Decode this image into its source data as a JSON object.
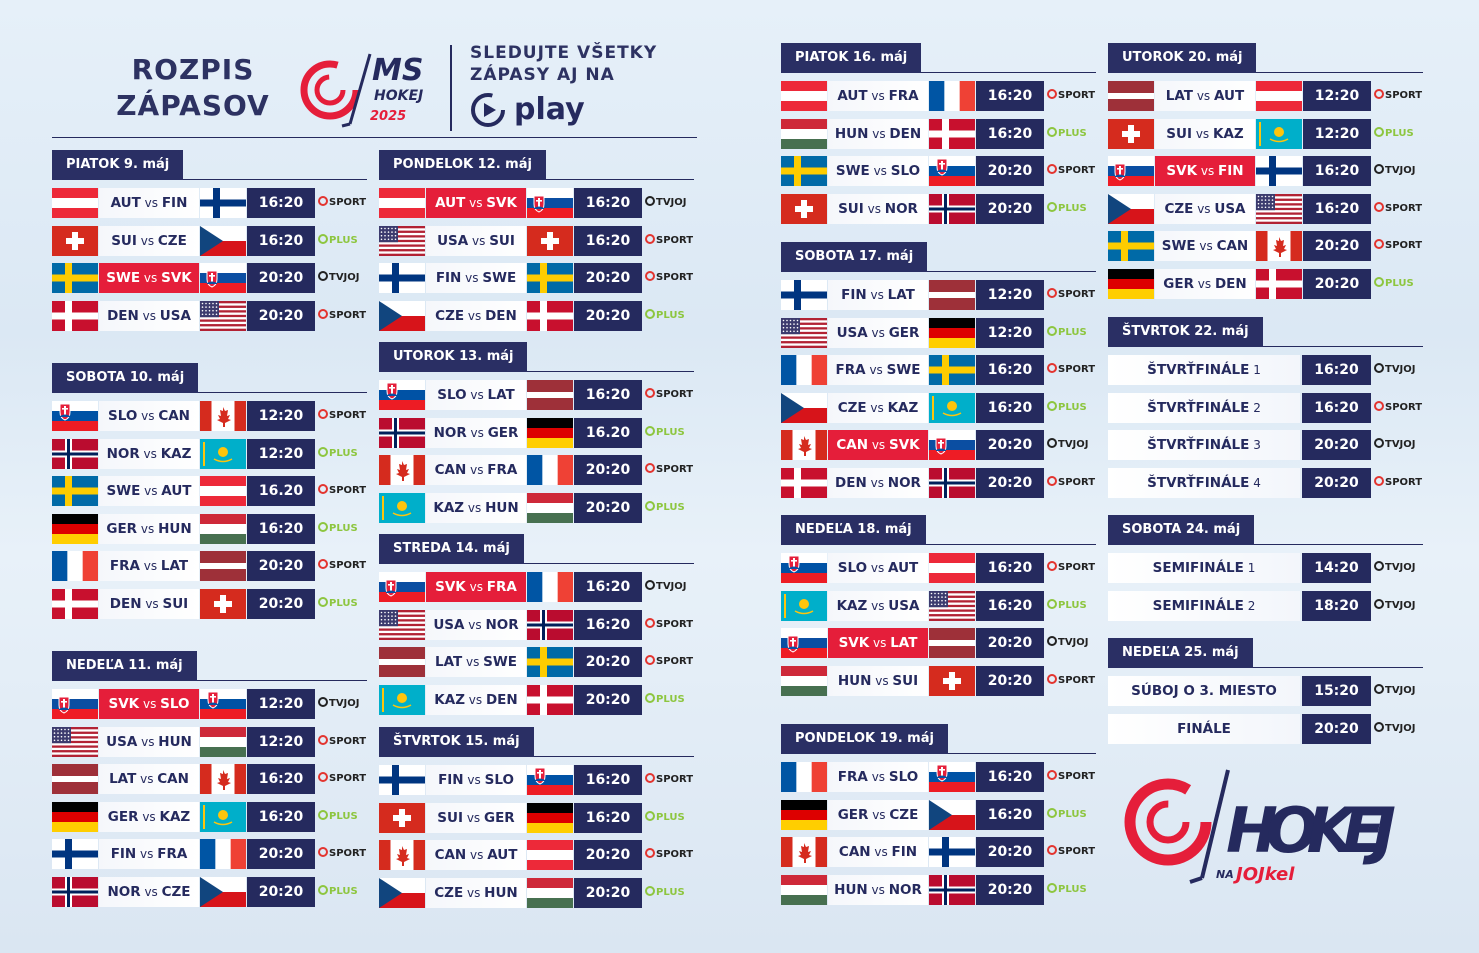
{
  "header": {
    "title_line1": "ROZPIS",
    "title_line2": "ZÁPASOV",
    "logo_ms": "MS",
    "logo_hokej": "HOKEJ",
    "logo_year": "2025",
    "follow_line1": "SLEDUJTE VŠETKY",
    "follow_line2": "ZÁPASY AJ NA",
    "play_label": "play"
  },
  "vs_label": "vs",
  "channels": {
    "sport": "SPORT",
    "plus": "PLUS",
    "tvjoj": "TVJOJ"
  },
  "brand": {
    "hokej": "HOKEJ",
    "na": "NA",
    "jojkel": "JOJkel"
  },
  "flag_colors": {
    "red": "#e51e3a",
    "navy": "#252a5e",
    "plus_green": "#8dc63f"
  },
  "days": [
    {
      "label": "PIATOK 9. máj",
      "matches": [
        {
          "home": "AUT",
          "away": "FIN",
          "time": "16:20",
          "channel": "sport",
          "svk": false
        },
        {
          "home": "SUI",
          "away": "CZE",
          "time": "16:20",
          "channel": "plus",
          "svk": false
        },
        {
          "home": "SWE",
          "away": "SVK",
          "time": "20:20",
          "channel": "tvjoj",
          "svk": true
        },
        {
          "home": "DEN",
          "away": "USA",
          "time": "20:20",
          "channel": "sport",
          "svk": false
        }
      ]
    },
    {
      "label": "SOBOTA 10. máj",
      "matches": [
        {
          "home": "SLO",
          "away": "CAN",
          "time": "12:20",
          "channel": "sport",
          "svk": false
        },
        {
          "home": "NOR",
          "away": "KAZ",
          "time": "12:20",
          "channel": "plus",
          "svk": false
        },
        {
          "home": "SWE",
          "away": "AUT",
          "time": "16.20",
          "channel": "sport",
          "svk": false
        },
        {
          "home": "GER",
          "away": "HUN",
          "time": "16:20",
          "channel": "plus",
          "svk": false
        },
        {
          "home": "FRA",
          "away": "LAT",
          "time": "20:20",
          "channel": "sport",
          "svk": false
        },
        {
          "home": "DEN",
          "away": "SUI",
          "time": "20:20",
          "channel": "plus",
          "svk": false
        }
      ]
    },
    {
      "label": "NEDEĽA 11. máj",
      "matches": [
        {
          "home": "SVK",
          "away": "SLO",
          "time": "12:20",
          "channel": "tvjoj",
          "svk": true
        },
        {
          "home": "USA",
          "away": "HUN",
          "time": "12:20",
          "channel": "sport",
          "svk": false
        },
        {
          "home": "LAT",
          "away": "CAN",
          "time": "16:20",
          "channel": "sport",
          "svk": false
        },
        {
          "home": "GER",
          "away": "KAZ",
          "time": "16:20",
          "channel": "plus",
          "svk": false
        },
        {
          "home": "FIN",
          "away": "FRA",
          "time": "20:20",
          "channel": "sport",
          "svk": false
        },
        {
          "home": "NOR",
          "away": "CZE",
          "time": "20:20",
          "channel": "plus",
          "svk": false
        }
      ]
    },
    {
      "label": "PONDELOK 12. máj",
      "matches": [
        {
          "home": "AUT",
          "away": "SVK",
          "time": "16:20",
          "channel": "tvjoj",
          "svk": true
        },
        {
          "home": "USA",
          "away": "SUI",
          "time": "16:20",
          "channel": "sport",
          "svk": false
        },
        {
          "home": "FIN",
          "away": "SWE",
          "time": "20:20",
          "channel": "sport",
          "svk": false
        },
        {
          "home": "CZE",
          "away": "DEN",
          "time": "20:20",
          "channel": "plus",
          "svk": false
        }
      ]
    },
    {
      "label": "UTOROK 13. máj",
      "matches": [
        {
          "home": "SLO",
          "away": "LAT",
          "time": "16:20",
          "channel": "sport",
          "svk": false
        },
        {
          "home": "NOR",
          "away": "GER",
          "time": "16.20",
          "channel": "plus",
          "svk": false
        },
        {
          "home": "CAN",
          "away": "FRA",
          "time": "20:20",
          "channel": "sport",
          "svk": false
        },
        {
          "home": "KAZ",
          "away": "HUN",
          "time": "20:20",
          "channel": "plus",
          "svk": false
        }
      ]
    },
    {
      "label": "STREDA 14. máj",
      "matches": [
        {
          "home": "SVK",
          "away": "FRA",
          "time": "16:20",
          "channel": "tvjoj",
          "svk": true
        },
        {
          "home": "USA",
          "away": "NOR",
          "time": "16:20",
          "channel": "sport",
          "svk": false
        },
        {
          "home": "LAT",
          "away": "SWE",
          "time": "20:20",
          "channel": "sport",
          "svk": false
        },
        {
          "home": "KAZ",
          "away": "DEN",
          "time": "20:20",
          "channel": "plus",
          "svk": false
        }
      ]
    },
    {
      "label": "ŠTVRTOK 15. máj",
      "matches": [
        {
          "home": "FIN",
          "away": "SLO",
          "time": "16:20",
          "channel": "sport",
          "svk": false
        },
        {
          "home": "SUI",
          "away": "GER",
          "time": "16:20",
          "channel": "plus",
          "svk": false
        },
        {
          "home": "CAN",
          "away": "AUT",
          "time": "20:20",
          "channel": "sport",
          "svk": false
        },
        {
          "home": "CZE",
          "away": "HUN",
          "time": "20:20",
          "channel": "plus",
          "svk": false
        }
      ]
    },
    {
      "label": "PIATOK 16. máj",
      "matches": [
        {
          "home": "AUT",
          "away": "FRA",
          "time": "16:20",
          "channel": "sport",
          "svk": false
        },
        {
          "home": "HUN",
          "away": "DEN",
          "time": "16:20",
          "channel": "plus",
          "svk": false
        },
        {
          "home": "SWE",
          "away": "SLO",
          "time": "20:20",
          "channel": "sport",
          "svk": false
        },
        {
          "home": "SUI",
          "away": "NOR",
          "time": "20:20",
          "channel": "plus",
          "svk": false
        }
      ]
    },
    {
      "label": "SOBOTA 17. máj",
      "matches": [
        {
          "home": "FIN",
          "away": "LAT",
          "time": "12:20",
          "channel": "sport",
          "svk": false
        },
        {
          "home": "USA",
          "away": "GER",
          "time": "12:20",
          "channel": "plus",
          "svk": false
        },
        {
          "home": "FRA",
          "away": "SWE",
          "time": "16:20",
          "channel": "sport",
          "svk": false
        },
        {
          "home": "CZE",
          "away": "KAZ",
          "time": "16:20",
          "channel": "plus",
          "svk": false
        },
        {
          "home": "CAN",
          "away": "SVK",
          "time": "20:20",
          "channel": "tvjoj",
          "svk": true
        },
        {
          "home": "DEN",
          "away": "NOR",
          "time": "20:20",
          "channel": "sport",
          "svk": false
        }
      ]
    },
    {
      "label": "NEDEĽA 18. máj",
      "matches": [
        {
          "home": "SLO",
          "away": "AUT",
          "time": "16:20",
          "channel": "sport",
          "svk": false
        },
        {
          "home": "KAZ",
          "away": "USA",
          "time": "16:20",
          "channel": "plus",
          "svk": false
        },
        {
          "home": "SVK",
          "away": "LAT",
          "time": "20:20",
          "channel": "tvjoj",
          "svk": true
        },
        {
          "home": "HUN",
          "away": "SUI",
          "time": "20:20",
          "channel": "sport",
          "svk": false
        }
      ]
    },
    {
      "label": "PONDELOK 19. máj",
      "matches": [
        {
          "home": "FRA",
          "away": "SLO",
          "time": "16:20",
          "channel": "sport",
          "svk": false
        },
        {
          "home": "GER",
          "away": "CZE",
          "time": "16:20",
          "channel": "plus",
          "svk": false
        },
        {
          "home": "CAN",
          "away": "FIN",
          "time": "20:20",
          "channel": "sport",
          "svk": false
        },
        {
          "home": "HUN",
          "away": "NOR",
          "time": "20:20",
          "channel": "plus",
          "svk": false
        }
      ]
    },
    {
      "label": "UTOROK 20. máj",
      "matches": [
        {
          "home": "LAT",
          "away": "AUT",
          "time": "12:20",
          "channel": "sport",
          "svk": false
        },
        {
          "home": "SUI",
          "away": "KAZ",
          "time": "12:20",
          "channel": "plus",
          "svk": false
        },
        {
          "home": "SVK",
          "away": "FIN",
          "time": "16:20",
          "channel": "tvjoj",
          "svk": true
        },
        {
          "home": "CZE",
          "away": "USA",
          "time": "16:20",
          "channel": "sport",
          "svk": false
        },
        {
          "home": "SWE",
          "away": "CAN",
          "time": "20:20",
          "channel": "sport",
          "svk": false
        },
        {
          "home": "GER",
          "away": "DEN",
          "time": "20:20",
          "channel": "plus",
          "svk": false
        }
      ]
    },
    {
      "label": "ŠTVRTOK 22. máj",
      "ko": [
        {
          "name": "ŠTVRŤFINÁLE",
          "num": "1",
          "time": "16:20",
          "channel": "tvjoj"
        },
        {
          "name": "ŠTVRŤFINÁLE",
          "num": "2",
          "time": "16:20",
          "channel": "sport"
        },
        {
          "name": "ŠTVRŤFINÁLE",
          "num": "3",
          "time": "20:20",
          "channel": "tvjoj"
        },
        {
          "name": "ŠTVRŤFINÁLE",
          "num": "4",
          "time": "20:20",
          "channel": "sport"
        }
      ]
    },
    {
      "label": "SOBOTA 24. máj",
      "ko": [
        {
          "name": "SEMIFINÁLE",
          "num": "1",
          "time": "14:20",
          "channel": "tvjoj"
        },
        {
          "name": "SEMIFINÁLE",
          "num": "2",
          "time": "18:20",
          "channel": "tvjoj"
        }
      ]
    },
    {
      "label": "NEDEĽA 25. máj",
      "ko": [
        {
          "name": "SÚBOJ O 3. MIESTO",
          "num": "",
          "time": "15:20",
          "channel": "tvjoj"
        },
        {
          "name": "FINÁLE",
          "num": "",
          "time": "20:20",
          "channel": "tvjoj"
        }
      ]
    }
  ]
}
